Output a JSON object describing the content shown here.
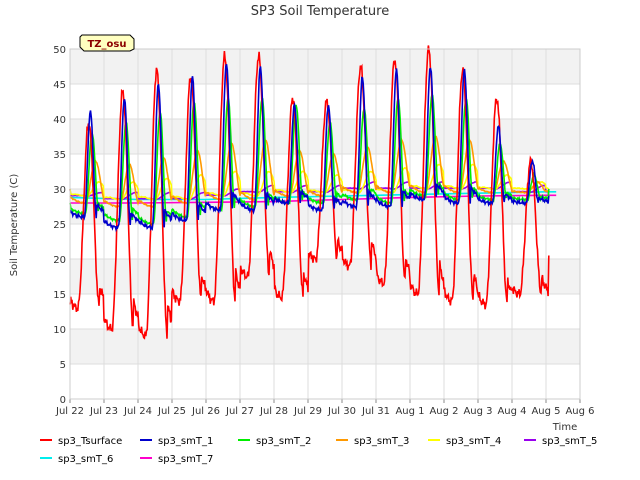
{
  "chart_data": {
    "type": "line",
    "title": "SP3 Soil Temperature",
    "xlabel": "Time",
    "ylabel": "Soil Temperature (C)",
    "badge": "TZ_osu",
    "xlim": [
      0,
      15
    ],
    "ylim": [
      0,
      50
    ],
    "yticks": [
      0,
      5,
      10,
      15,
      20,
      25,
      30,
      35,
      40,
      45,
      50
    ],
    "xtick_labels": [
      "Jul 22",
      "Jul 23",
      "Jul 24",
      "Jul 25",
      "Jul 26",
      "Jul 27",
      "Jul 28",
      "Jul 29",
      "Jul 30",
      "Jul 31",
      "Aug 1",
      "Aug 2",
      "Aug 3",
      "Aug 4",
      "Aug 5",
      "Aug 6"
    ],
    "x_unit": "days since Jul 22 00:00",
    "series": [
      {
        "name": "sp3_Tsurface",
        "color": "#ff0000",
        "daily_max": [
          39.5,
          44,
          47,
          46,
          49,
          49,
          43,
          42.5,
          47.5,
          48.5,
          50,
          47,
          43,
          34
        ],
        "daily_min": [
          13,
          10,
          9,
          14,
          14,
          17.5,
          14.5,
          20,
          19,
          16.5,
          15,
          14,
          13.5,
          15
        ],
        "start": 13.5,
        "end": 20.5
      },
      {
        "name": "sp3_smT_1",
        "color": "#0000cc",
        "daily_max": [
          41,
          43,
          45,
          46,
          48,
          47.5,
          42,
          42,
          46,
          47,
          47.5,
          47,
          39,
          34
        ],
        "daily_min": [
          26,
          24.5,
          24.5,
          25.5,
          27,
          27,
          28,
          27,
          27.5,
          27.5,
          28.5,
          28,
          28,
          28
        ],
        "start": 27,
        "end": 29
      },
      {
        "name": "sp3_smT_2",
        "color": "#00ee00",
        "daily_max": [
          38,
          39.5,
          41,
          42.5,
          43,
          43,
          42,
          39.5,
          41.5,
          43,
          43.5,
          43,
          36.5,
          32
        ],
        "daily_min": [
          26.5,
          25.5,
          25,
          26,
          27,
          27.5,
          28,
          28,
          28.5,
          28,
          29,
          28.5,
          28.5,
          28.5
        ],
        "start": 28,
        "end": 30
      },
      {
        "name": "sp3_smT_3",
        "color": "#ff9900",
        "daily_max": [
          34,
          33.5,
          34.5,
          35.5,
          36.5,
          37,
          35.5,
          35,
          36,
          37,
          37.5,
          37,
          34,
          31
        ],
        "daily_min": [
          28,
          27.5,
          27.5,
          28,
          28.5,
          28.5,
          29,
          29,
          29.5,
          29.5,
          29.5,
          29.5,
          29.5,
          29.5
        ],
        "start": 29,
        "end": 30
      },
      {
        "name": "sp3_smT_4",
        "color": "#ffff00",
        "daily_max": [
          31,
          31,
          31.5,
          32,
          32.5,
          32.5,
          32.5,
          32,
          32.5,
          33,
          33.5,
          33.5,
          32,
          31
        ],
        "daily_min": [
          29,
          28.5,
          28.5,
          28.5,
          29,
          29,
          29.5,
          29.5,
          29.5,
          29.5,
          30,
          30,
          30,
          30
        ],
        "start": 30,
        "end": 30
      },
      {
        "name": "sp3_smT_5",
        "color": "#9900ee",
        "daily_max": [
          29.5,
          29.5,
          29.5,
          29.5,
          30,
          30.5,
          30.5,
          30.5,
          31,
          31,
          31,
          31,
          31,
          30.5
        ],
        "daily_min": [
          29,
          28.5,
          28.5,
          28.5,
          29,
          29.5,
          29.5,
          29.5,
          30,
          30,
          30,
          30,
          30,
          29.5
        ],
        "start": 30,
        "end": 29
      },
      {
        "name": "sp3_smT_6",
        "color": "#00eeee",
        "x": [
          0,
          2,
          4,
          6,
          8,
          10,
          12,
          14,
          14.3
        ],
        "y": [
          28.8,
          28.5,
          28.5,
          28.8,
          29.0,
          29.2,
          29.4,
          29.6,
          29.6
        ]
      },
      {
        "name": "sp3_smT_7",
        "color": "#ff00cc",
        "x": [
          0,
          2,
          4,
          6,
          8,
          10,
          12,
          14,
          14.3
        ],
        "y": [
          28.0,
          28.0,
          28.1,
          28.2,
          28.5,
          28.8,
          29.0,
          29.1,
          29.1
        ]
      }
    ],
    "grid": true,
    "legend_position": "bottom"
  }
}
